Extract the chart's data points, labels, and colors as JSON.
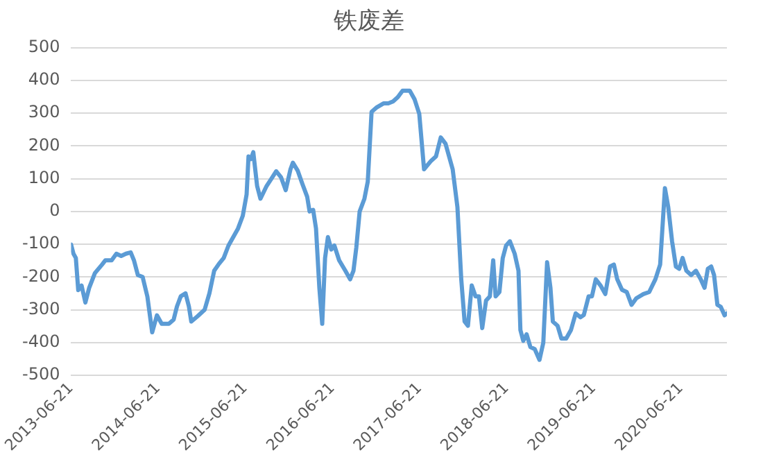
{
  "chart_data": {
    "type": "line",
    "title": "铁废差",
    "x": [
      "2013-06-21",
      "2013-07-01",
      "2013-07-11",
      "2013-07-21",
      "2013-08-04",
      "2013-08-20",
      "2013-09-05",
      "2013-09-29",
      "2013-10-29",
      "2013-11-12",
      "2013-12-08",
      "2013-12-28",
      "2014-01-17",
      "2014-02-06",
      "2014-02-26",
      "2014-03-12",
      "2014-03-28",
      "2014-04-17",
      "2014-05-07",
      "2014-05-27",
      "2014-06-16",
      "2014-07-06",
      "2014-08-05",
      "2014-08-25",
      "2014-09-08",
      "2014-09-24",
      "2014-10-14",
      "2014-10-28",
      "2014-11-07",
      "2014-12-03",
      "2015-01-02",
      "2015-01-22",
      "2015-02-11",
      "2015-03-03",
      "2015-03-23",
      "2015-04-12",
      "2015-05-02",
      "2015-05-22",
      "2015-06-11",
      "2015-06-27",
      "2015-07-05",
      "2015-07-15",
      "2015-07-25",
      "2015-08-10",
      "2015-08-24",
      "2015-09-19",
      "2015-10-09",
      "2015-10-29",
      "2015-11-18",
      "2015-12-08",
      "2015-12-28",
      "2016-01-07",
      "2016-01-27",
      "2016-02-16",
      "2016-03-07",
      "2016-03-17",
      "2016-04-01",
      "2016-04-13",
      "2016-04-27",
      "2016-05-09",
      "2016-05-21",
      "2016-06-02",
      "2016-06-16",
      "2016-06-29",
      "2016-07-19",
      "2016-08-14",
      "2016-09-03",
      "2016-09-17",
      "2016-09-29",
      "2016-10-13",
      "2016-11-02",
      "2016-11-16",
      "2016-12-02",
      "2016-12-22",
      "2017-01-21",
      "2017-02-10",
      "2017-03-02",
      "2017-03-22",
      "2017-04-11",
      "2017-05-11",
      "2017-05-31",
      "2017-06-20",
      "2017-07-10",
      "2017-08-09",
      "2017-08-29",
      "2017-09-18",
      "2017-10-08",
      "2017-11-07",
      "2017-11-27",
      "2017-12-13",
      "2017-12-27",
      "2018-01-10",
      "2018-01-26",
      "2018-02-11",
      "2018-02-25",
      "2018-03-11",
      "2018-03-27",
      "2018-04-12",
      "2018-04-26",
      "2018-05-06",
      "2018-05-22",
      "2018-06-05",
      "2018-06-19",
      "2018-07-05",
      "2018-07-25",
      "2018-08-10",
      "2018-08-18",
      "2018-08-30",
      "2018-09-13",
      "2018-09-29",
      "2018-10-17",
      "2018-11-06",
      "2018-11-22",
      "2018-12-08",
      "2018-12-22",
      "2019-01-01",
      "2019-01-21",
      "2019-02-06",
      "2019-02-26",
      "2019-03-18",
      "2019-04-07",
      "2019-04-27",
      "2019-05-11",
      "2019-05-31",
      "2019-06-14",
      "2019-06-30",
      "2019-07-20",
      "2019-08-09",
      "2019-08-29",
      "2019-09-14",
      "2019-09-28",
      "2019-10-18",
      "2019-11-07",
      "2019-11-27",
      "2019-12-17",
      "2020-01-16",
      "2020-02-09",
      "2020-03-06",
      "2020-03-26",
      "2020-04-15",
      "2020-04-29",
      "2020-05-15",
      "2020-05-31",
      "2020-06-14",
      "2020-06-28",
      "2020-07-14",
      "2020-08-03",
      "2020-08-23",
      "2020-09-12",
      "2020-09-28",
      "2020-10-12",
      "2020-10-26",
      "2020-11-07",
      "2020-11-21",
      "2020-12-05",
      "2020-12-21",
      "2020-12-31"
    ],
    "series": [
      {
        "color": "#5b9bd5",
        "values": [
          -101,
          -129,
          -142,
          -240,
          -226,
          -278,
          -233,
          -188,
          -162,
          -149,
          -149,
          -129,
          -136,
          -129,
          -125,
          -150,
          -194,
          -200,
          -260,
          -369,
          -317,
          -343,
          -343,
          -330,
          -290,
          -259,
          -250,
          -290,
          -336,
          -320,
          -300,
          -250,
          -181,
          -160,
          -142,
          -104,
          -78,
          -52,
          -13,
          52,
          168,
          160,
          181,
          78,
          39,
          78,
          100,
          123,
          105,
          65,
          129,
          149,
          125,
          84,
          45,
          0,
          5,
          -52,
          -233,
          -343,
          -142,
          -78,
          -116,
          -104,
          -149,
          -181,
          -207,
          -181,
          -110,
          0,
          39,
          91,
          304,
          317,
          330,
          330,
          336,
          349,
          369,
          369,
          343,
          298,
          129,
          155,
          168,
          226,
          207,
          129,
          13,
          -207,
          -336,
          -349,
          -226,
          -259,
          -259,
          -356,
          -272,
          -259,
          -149,
          -259,
          -246,
          -142,
          -104,
          -91,
          -129,
          -181,
          -362,
          -395,
          -375,
          -414,
          -420,
          -453,
          -401,
          -155,
          -233,
          -336,
          -349,
          -388,
          -388,
          -362,
          -311,
          -323,
          -316,
          -259,
          -259,
          -207,
          -226,
          -252,
          -168,
          -162,
          -207,
          -239,
          -246,
          -285,
          -265,
          -252,
          -246,
          -207,
          -162,
          71,
          13,
          -91,
          -168,
          -175,
          -142,
          -181,
          -194,
          -181,
          -207,
          -233,
          -175,
          -168,
          -194,
          -285,
          -291,
          -317,
          -311
        ]
      }
    ],
    "xlim": [
      "2013-06-21",
      "2020-12-31"
    ],
    "xticks": [
      "2013-06-21",
      "2014-06-21",
      "2015-06-21",
      "2016-06-21",
      "2017-06-21",
      "2018-06-21",
      "2019-06-21",
      "2020-06-21"
    ],
    "ylim": [
      -500,
      500
    ],
    "yticks": [
      -500,
      -400,
      -300,
      -200,
      -100,
      0,
      100,
      200,
      300,
      400,
      500
    ],
    "grid": "y",
    "marker": "none",
    "line_style": "solid"
  }
}
